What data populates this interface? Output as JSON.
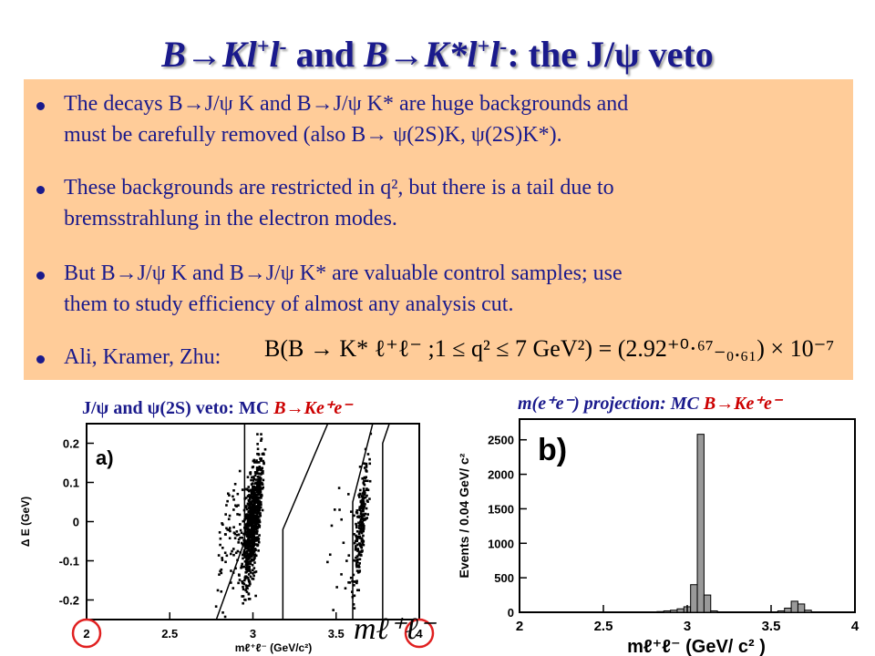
{
  "title": {
    "part1": "B→Kl",
    "part1_sup": "+",
    "part1b": "l",
    "part1b_sup": "-",
    "mid": " and ",
    "part2": "B→K*l",
    "part2_sup": "+",
    "part2b": "l",
    "part2b_sup": "-",
    "part3": ": the J/ψ veto"
  },
  "bullets": [
    {
      "line1": "The decays B→J/ψ K and B→J/ψ K* are huge backgrounds and",
      "line2": "must be carefully removed (also B→ ψ(2S)K, ψ(2S)K*)."
    },
    {
      "line1": "These backgrounds are restricted in q², but there is a tail due to",
      "line2": "bremsstrahlung in the electron modes."
    },
    {
      "line1": "But B→J/ψ K and B→J/ψ K* are valuable control samples; use",
      "line2": "them to study efficiency of almost any analysis cut."
    },
    {
      "line1": "Ali, Kramer, Zhu:"
    }
  ],
  "formula": "B(B → K* ℓ⁺ℓ⁻ ;1 ≤ q² ≤ 7 GeV²) = (2.92⁺⁰·⁶⁷₋₀.₆₁) × 10⁻⁷",
  "caption_left": {
    "text": "J/ψ and ψ(2S) veto: MC ",
    "red": "B→Ke⁺e⁻"
  },
  "caption_right": {
    "pre": "m(e⁺e⁻) projection: MC ",
    "red": "B→Ke⁺e⁻"
  },
  "mll_label": "mℓ⁺ℓ⁻",
  "colors": {
    "title": "#1a1a8c",
    "panel": "#ffcc99",
    "circle": "#e02020",
    "bar_fill": "#999999"
  },
  "chart_data": [
    {
      "type": "scatter",
      "panel_label": "a)",
      "xlabel": "mℓ⁺ℓ⁻ (GeV/c²)",
      "ylabel": "Δ E (GeV)",
      "xlim": [
        2,
        4
      ],
      "ylim": [
        -0.25,
        0.25
      ],
      "x_ticks": [
        "2",
        "2.5",
        "3",
        "3.5",
        "4"
      ],
      "y_ticks": [
        "-0.2",
        "-0.1",
        "0",
        "0.1",
        "0.2"
      ],
      "clusters": [
        {
          "name": "",
          "center_x": 3.0,
          "center_y": 0.0,
          "slope": 0.9,
          "spread_x": 0.06,
          "n": 900
        },
        {
          "name": "",
          "center_x": 3.65,
          "center_y": 0.0,
          "slope": 0.9,
          "spread_x": 0.04,
          "n": 250
        }
      ],
      "veto_lines": [
        [
          [
            2.78,
            -0.25
          ],
          [
            2.95,
            -0.05
          ],
          [
            2.95,
            0.25
          ]
        ],
        [
          [
            3.18,
            -0.25
          ],
          [
            3.18,
            -0.02
          ],
          [
            3.45,
            0.25
          ]
        ],
        [
          [
            3.6,
            -0.25
          ],
          [
            3.6,
            0.05
          ],
          [
            3.72,
            0.25
          ]
        ],
        [
          [
            3.78,
            -0.25
          ],
          [
            3.78,
            0.2
          ],
          [
            3.82,
            0.25
          ]
        ]
      ],
      "circled_ticks": [
        "2",
        "4"
      ]
    },
    {
      "type": "bar",
      "panel_label": "b)",
      "xlabel": "mℓ⁺ℓ⁻ (GeV/ c² )",
      "ylabel": "Events / 0.04 GeV/ c²",
      "xlim": [
        2,
        4
      ],
      "ylim": [
        0,
        2800
      ],
      "x_ticks": [
        "2",
        "2.5",
        "3",
        "3.5",
        "4"
      ],
      "y_ticks": [
        "0",
        "500",
        "1000",
        "1500",
        "2000",
        "2500"
      ],
      "bin_width": 0.04,
      "bins": [
        {
          "x": 2.84,
          "value": 10
        },
        {
          "x": 2.88,
          "value": 20
        },
        {
          "x": 2.92,
          "value": 30
        },
        {
          "x": 2.96,
          "value": 50
        },
        {
          "x": 3.0,
          "value": 80
        },
        {
          "x": 3.04,
          "value": 400
        },
        {
          "x": 3.08,
          "value": 2580
        },
        {
          "x": 3.12,
          "value": 250
        },
        {
          "x": 3.16,
          "value": 20
        },
        {
          "x": 3.56,
          "value": 20
        },
        {
          "x": 3.6,
          "value": 60
        },
        {
          "x": 3.64,
          "value": 160
        },
        {
          "x": 3.68,
          "value": 120
        },
        {
          "x": 3.72,
          "value": 30
        }
      ]
    }
  ]
}
